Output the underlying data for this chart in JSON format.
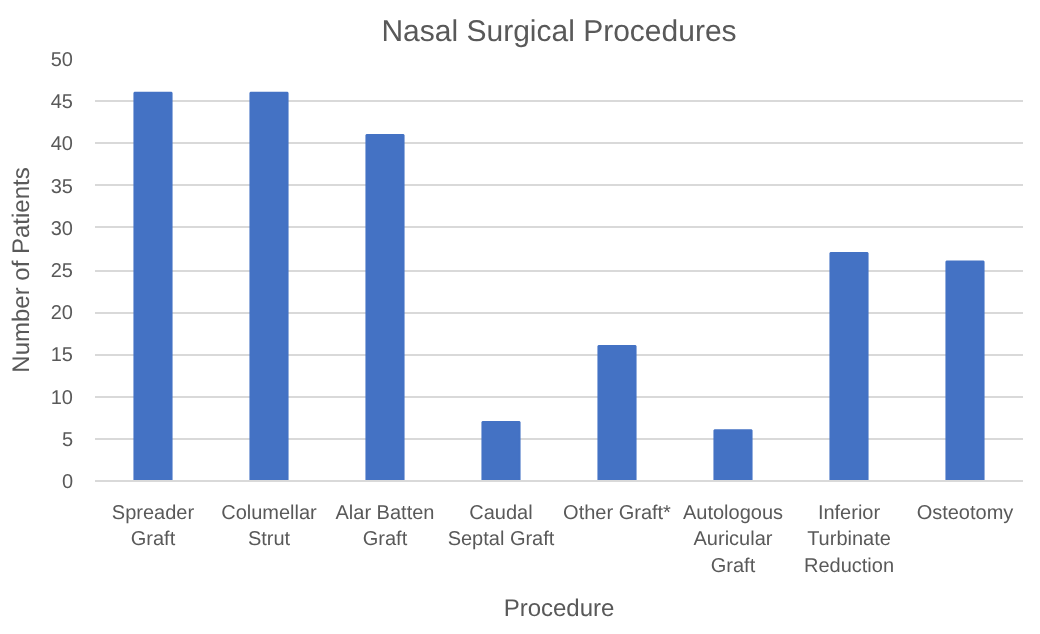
{
  "chart_data": {
    "type": "bar",
    "title": "Nasal Surgical Procedures",
    "xlabel": "Procedure",
    "ylabel": "Number of Patients",
    "categories": [
      "Spreader Graft",
      "Columellar Strut",
      "Alar Batten Graft",
      "Caudal Septal Graft",
      "Other Graft*",
      "Autologous Auricular Graft",
      "Inferior Turbinate Reduction",
      "Osteotomy"
    ],
    "values": [
      46,
      46,
      41,
      7,
      16,
      6,
      27,
      26
    ],
    "color": "#4472c4",
    "ylim": [
      0,
      50
    ],
    "yticks": [
      0,
      5,
      10,
      15,
      20,
      25,
      30,
      35,
      40,
      45,
      50
    ],
    "grid": "y"
  }
}
